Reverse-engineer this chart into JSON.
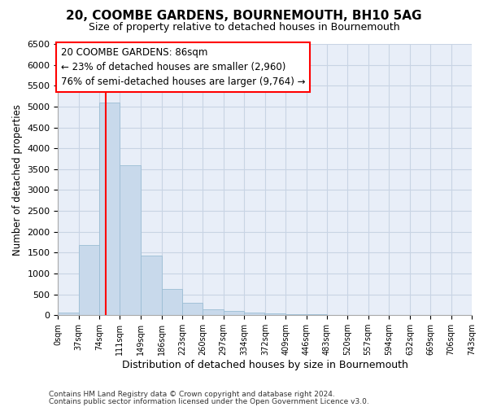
{
  "title": "20, COOMBE GARDENS, BOURNEMOUTH, BH10 5AG",
  "subtitle": "Size of property relative to detached houses in Bournemouth",
  "xlabel": "Distribution of detached houses by size in Bournemouth",
  "ylabel": "Number of detached properties",
  "footnote1": "Contains HM Land Registry data © Crown copyright and database right 2024.",
  "footnote2": "Contains public sector information licensed under the Open Government Licence v3.0.",
  "bar_color": "#c8d9eb",
  "bar_edge_color": "#9bbdd4",
  "annotation_line1": "20 COOMBE GARDENS: 86sqm",
  "annotation_line2": "← 23% of detached houses are smaller (2,960)",
  "annotation_line3": "76% of semi-detached houses are larger (9,764) →",
  "red_line_x": 86,
  "bin_edges": [
    0,
    37,
    74,
    111,
    149,
    186,
    223,
    260,
    297,
    334,
    372,
    409,
    446,
    483,
    520,
    557,
    594,
    632,
    669,
    706,
    743
  ],
  "bar_heights": [
    60,
    1680,
    5100,
    3600,
    1430,
    620,
    295,
    150,
    105,
    70,
    42,
    28,
    18,
    8,
    5,
    3,
    2,
    1,
    1,
    0
  ],
  "ylim": [
    0,
    6500
  ],
  "yticks": [
    0,
    500,
    1000,
    1500,
    2000,
    2500,
    3000,
    3500,
    4000,
    4500,
    5000,
    5500,
    6000,
    6500
  ],
  "grid_color": "#c8d4e4",
  "background_color": "#e8eef8",
  "title_fontsize": 11,
  "subtitle_fontsize": 9
}
